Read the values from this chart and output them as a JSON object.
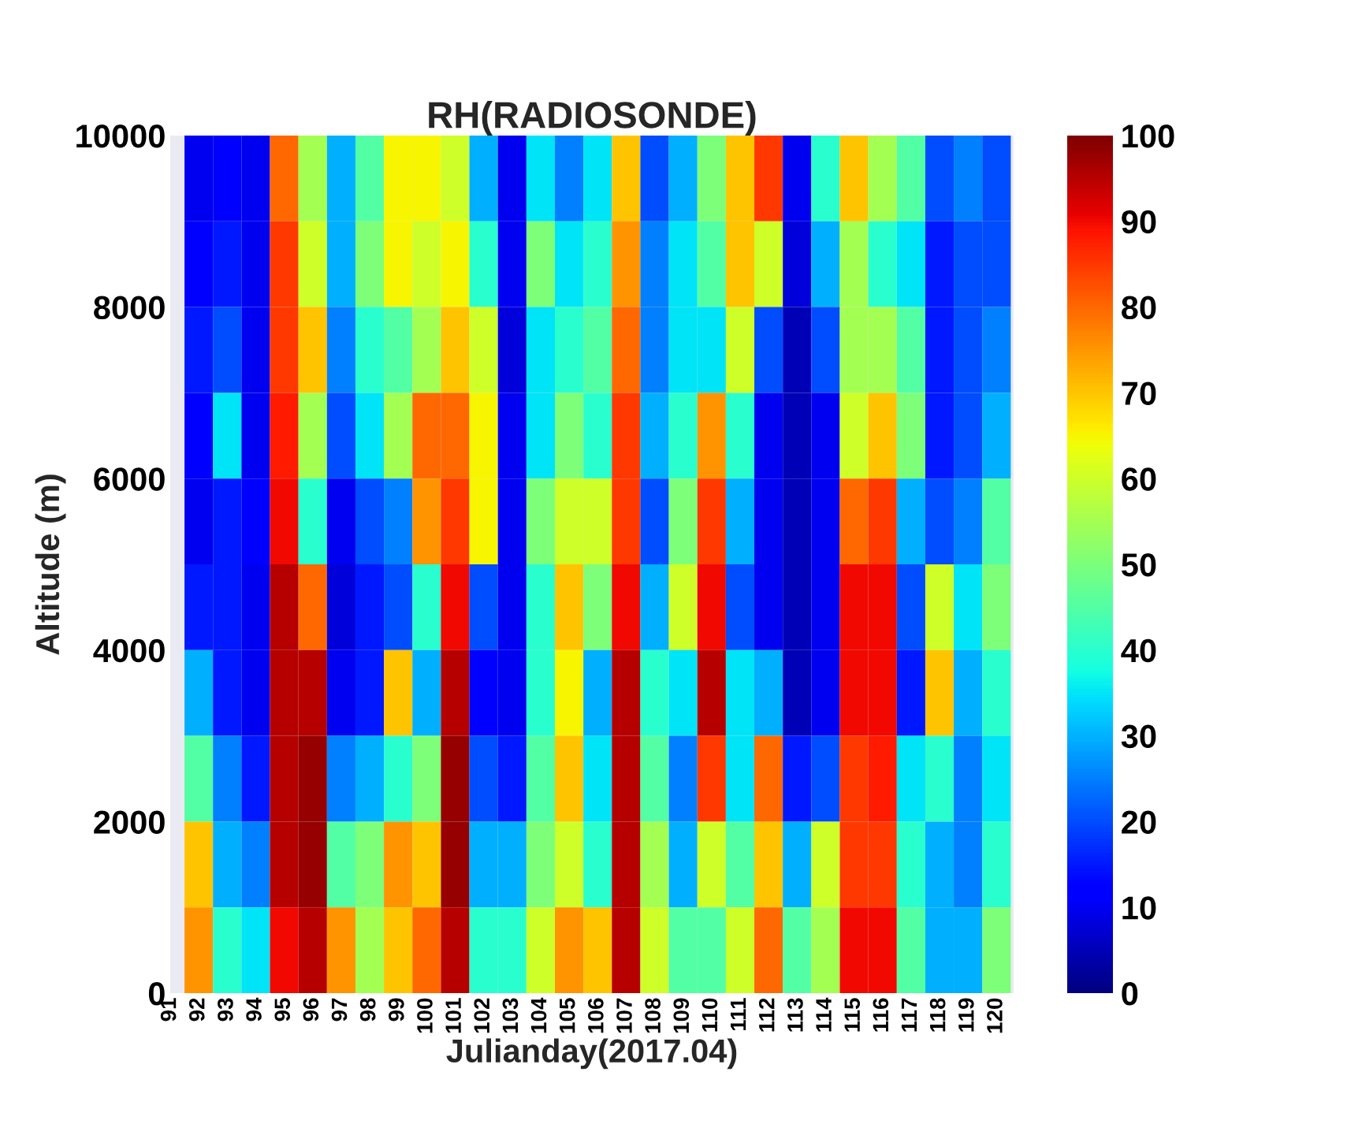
{
  "chart_data": {
    "type": "heatmap",
    "title": "RH(RADIOSONDE)",
    "xlabel": "Julianday(2017.04)",
    "ylabel": "Altitude (m)",
    "x": [
      92,
      93,
      94,
      95,
      96,
      97,
      98,
      99,
      100,
      101,
      102,
      103,
      104,
      105,
      106,
      107,
      108,
      109,
      110,
      111,
      112,
      113,
      114,
      115,
      116,
      117,
      118,
      119,
      120
    ],
    "xlim": [
      91,
      120.6
    ],
    "xticks": [
      91,
      92,
      93,
      94,
      95,
      96,
      97,
      98,
      99,
      100,
      101,
      102,
      103,
      104,
      105,
      106,
      107,
      108,
      109,
      110,
      111,
      112,
      113,
      114,
      115,
      116,
      117,
      118,
      119,
      120
    ],
    "ylim": [
      0,
      10000
    ],
    "yticks": [
      0,
      2000,
      4000,
      6000,
      8000,
      10000
    ],
    "clim": [
      0,
      100
    ],
    "cticks": [
      0,
      10,
      20,
      30,
      40,
      50,
      60,
      70,
      80,
      90,
      100
    ],
    "grid": false,
    "cells": [
      [
        10,
        12,
        10,
        80,
        55,
        30,
        45,
        65,
        65,
        60,
        30,
        10,
        35,
        25,
        35,
        70,
        20,
        30,
        50,
        70,
        85,
        10,
        40,
        70,
        55,
        45,
        20,
        25,
        20
      ],
      [
        12,
        15,
        10,
        85,
        60,
        30,
        50,
        65,
        60,
        65,
        40,
        10,
        50,
        35,
        40,
        75,
        25,
        35,
        45,
        70,
        60,
        8,
        30,
        55,
        40,
        35,
        15,
        20,
        20
      ],
      [
        15,
        20,
        10,
        85,
        70,
        25,
        40,
        45,
        55,
        70,
        60,
        8,
        35,
        40,
        45,
        80,
        25,
        35,
        35,
        60,
        20,
        5,
        20,
        55,
        55,
        45,
        15,
        20,
        25
      ],
      [
        12,
        35,
        10,
        88,
        55,
        20,
        35,
        55,
        80,
        80,
        65,
        10,
        35,
        50,
        40,
        85,
        30,
        40,
        75,
        40,
        10,
        5,
        10,
        60,
        70,
        50,
        15,
        20,
        30
      ],
      [
        10,
        15,
        12,
        90,
        40,
        10,
        20,
        25,
        75,
        85,
        65,
        10,
        50,
        60,
        60,
        85,
        20,
        50,
        85,
        30,
        10,
        5,
        10,
        80,
        85,
        30,
        20,
        25,
        45
      ],
      [
        15,
        15,
        10,
        95,
        80,
        8,
        15,
        20,
        40,
        90,
        20,
        10,
        40,
        70,
        50,
        90,
        30,
        60,
        90,
        20,
        10,
        5,
        10,
        90,
        90,
        20,
        60,
        35,
        50
      ],
      [
        30,
        15,
        10,
        95,
        95,
        10,
        15,
        70,
        30,
        95,
        12,
        10,
        40,
        65,
        30,
        95,
        40,
        35,
        95,
        35,
        30,
        5,
        10,
        90,
        90,
        15,
        70,
        30,
        40
      ],
      [
        45,
        25,
        15,
        95,
        98,
        25,
        30,
        40,
        50,
        98,
        20,
        15,
        45,
        70,
        35,
        95,
        45,
        25,
        85,
        35,
        80,
        15,
        20,
        85,
        88,
        35,
        40,
        25,
        35
      ],
      [
        70,
        30,
        25,
        95,
        98,
        45,
        50,
        75,
        70,
        98,
        30,
        30,
        50,
        60,
        40,
        95,
        55,
        30,
        60,
        45,
        70,
        30,
        60,
        85,
        85,
        40,
        30,
        25,
        40
      ],
      [
        75,
        40,
        35,
        90,
        95,
        75,
        55,
        70,
        80,
        95,
        40,
        40,
        60,
        75,
        70,
        95,
        60,
        45,
        45,
        60,
        80,
        45,
        55,
        90,
        90,
        45,
        30,
        30,
        50
      ]
    ]
  }
}
